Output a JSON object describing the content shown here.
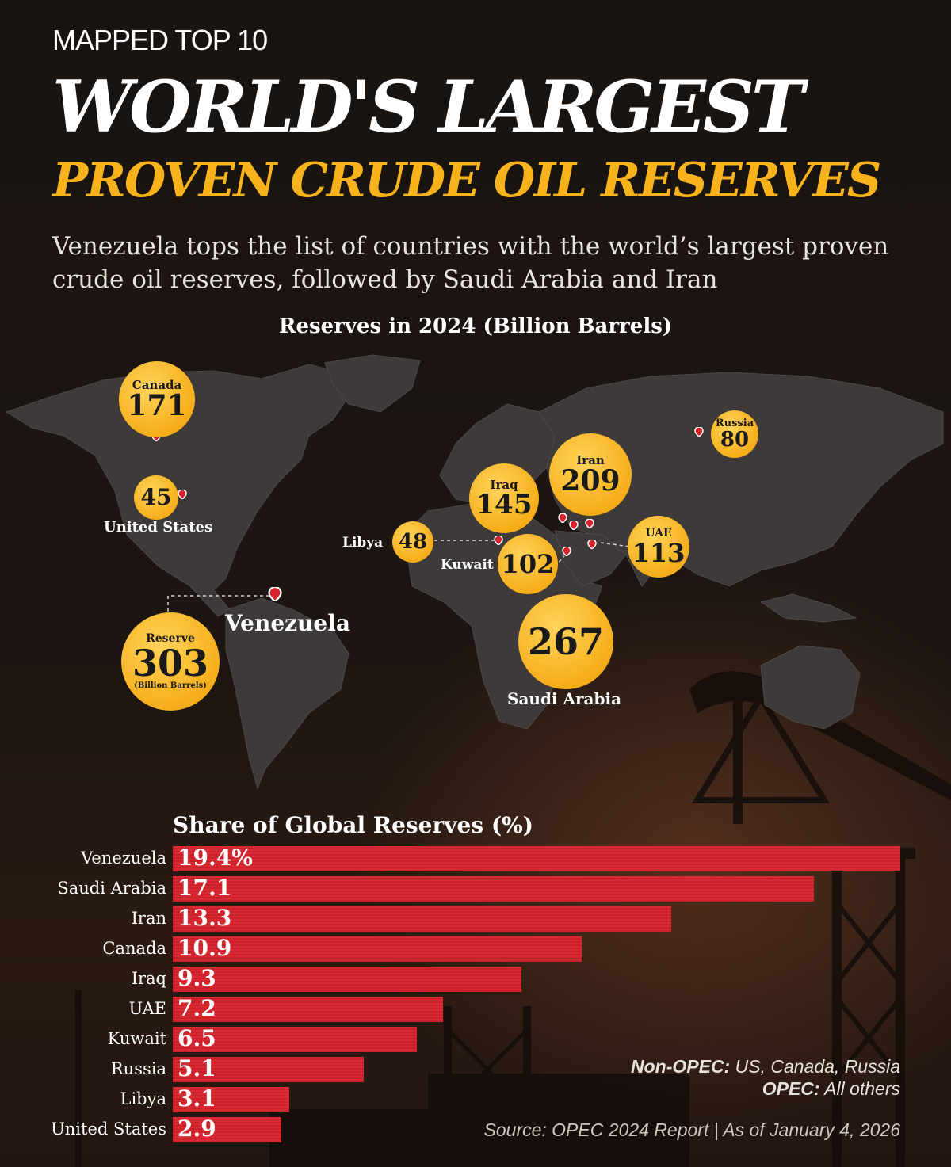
{
  "header": {
    "eyebrow": "MAPPED TOP 10",
    "title_line1": "WORLD'S LARGEST",
    "title_line2": "PROVEN CRUDE OIL RESERVES",
    "subtitle": "Venezuela tops the list of countries with the world’s largest proven crude oil reserves, followed by Saudi Arabia and Iran"
  },
  "map": {
    "heading": "Reserves in 2024  (Billion Barrels)",
    "markers": [
      {
        "country": "Canada",
        "value": "171"
      },
      {
        "country": "United States",
        "value": "45"
      },
      {
        "country": "Venezuela",
        "value": "303",
        "bubble_label": "Reserve",
        "unit": "(Billion Barrels)"
      },
      {
        "country": "Russia",
        "value": "80"
      },
      {
        "country": "Iran",
        "value": "209"
      },
      {
        "country": "Iraq",
        "value": "145"
      },
      {
        "country": "Libya",
        "value": "48"
      },
      {
        "country": "Kuwait",
        "value": "102"
      },
      {
        "country": "UAE",
        "value": "113"
      },
      {
        "country": "Saudi Arabia",
        "value": "267"
      }
    ]
  },
  "chart_data": {
    "type": "bar",
    "title": "Share of Global Reserves (%)",
    "categories": [
      "Venezuela",
      "Saudi Arabia",
      "Iran",
      "Canada",
      "Iraq",
      "UAE",
      "Kuwait",
      "Russia",
      "Libya",
      "United States"
    ],
    "values": [
      19.4,
      17.1,
      13.3,
      10.9,
      9.3,
      7.2,
      6.5,
      5.1,
      3.1,
      2.9
    ],
    "value_labels": [
      "19.4%",
      "17.1",
      "13.3",
      "10.9",
      "9.3",
      "7.2",
      "6.5",
      "5.1",
      "3.1",
      "2.9"
    ],
    "orientation": "horizontal",
    "bar_color": "#d8232d"
  },
  "notes": {
    "non_opec_label": "Non-OPEC:",
    "non_opec_value": "US, Canada, Russia",
    "opec_label": "OPEC:",
    "opec_value": "All others"
  },
  "source": "Source: OPEC 2024 Report  |  As of January 4, 2026",
  "colors": {
    "accent": "#f7b21c",
    "bar": "#d8232d",
    "background": "#1b1410",
    "land": "#3d3a39"
  }
}
